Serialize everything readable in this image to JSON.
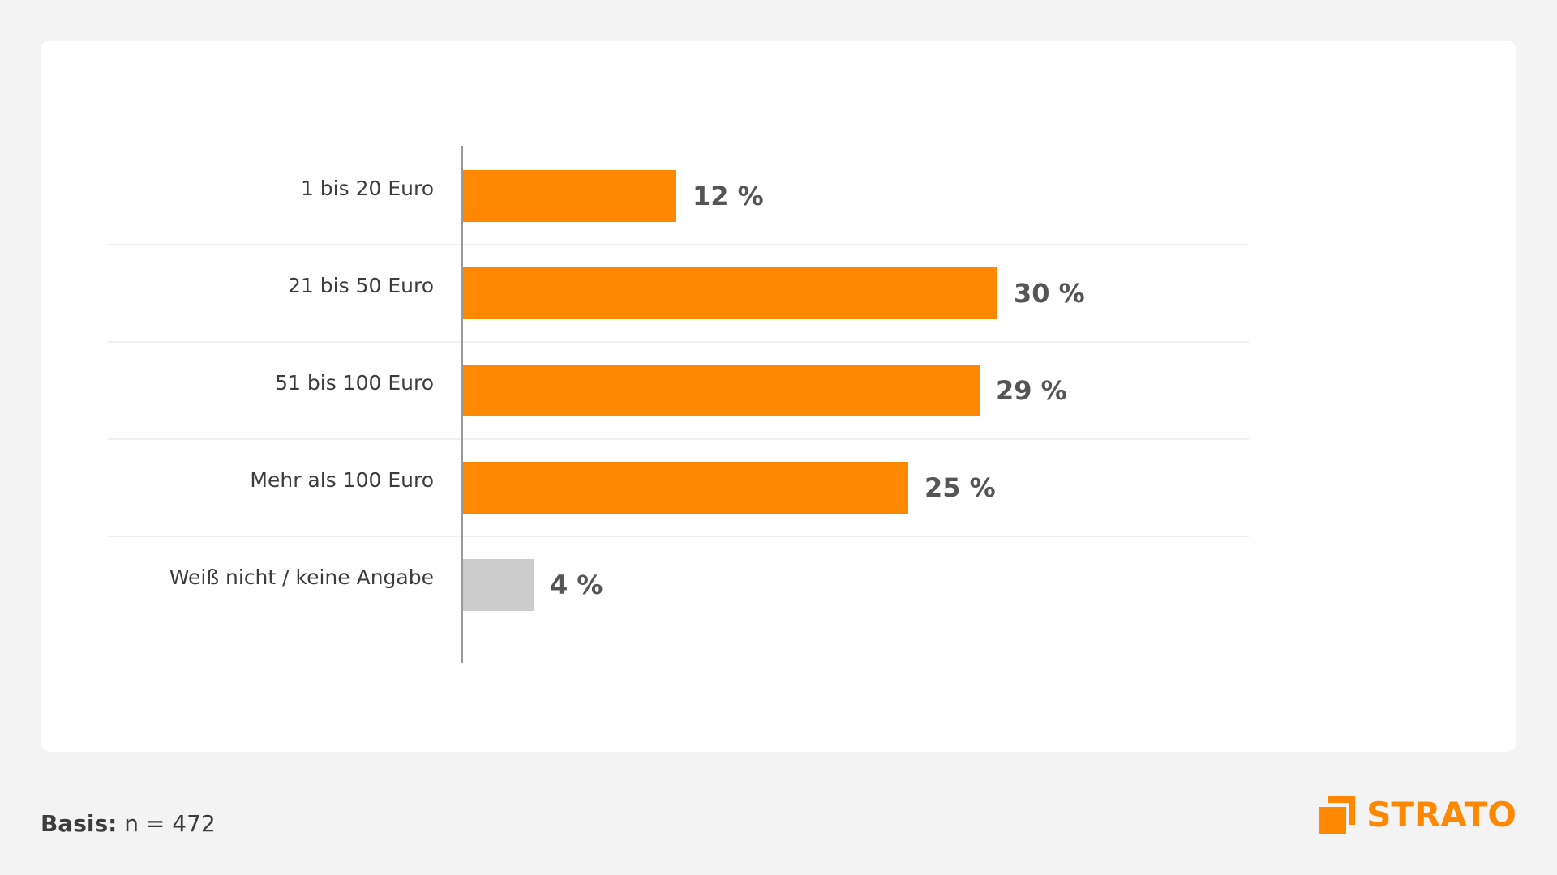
{
  "chart_data": {
    "type": "bar",
    "orientation": "horizontal",
    "categories": [
      "1 bis 20 Euro",
      "21 bis 50 Euro",
      "51 bis 100 Euro",
      "Mehr als 100 Euro",
      "Weiß nicht / keine Angabe"
    ],
    "values": [
      12,
      30,
      29,
      25,
      4
    ],
    "value_labels": [
      "12 %",
      "30 %",
      "29 %",
      "25 %",
      "4 %"
    ],
    "bar_colors": [
      "#ff8800",
      "#ff8800",
      "#ff8800",
      "#ff8800",
      "#cccccc"
    ],
    "xlim": [
      0,
      35
    ],
    "title": "",
    "xlabel": "",
    "ylabel": "",
    "grid": false,
    "legend": "none"
  },
  "footer": {
    "basis_label": "Basis:",
    "basis_value": "n = 472"
  },
  "logo": {
    "text": "STRATO",
    "icon": "strato-logo-icon",
    "color": "#ff8800"
  }
}
